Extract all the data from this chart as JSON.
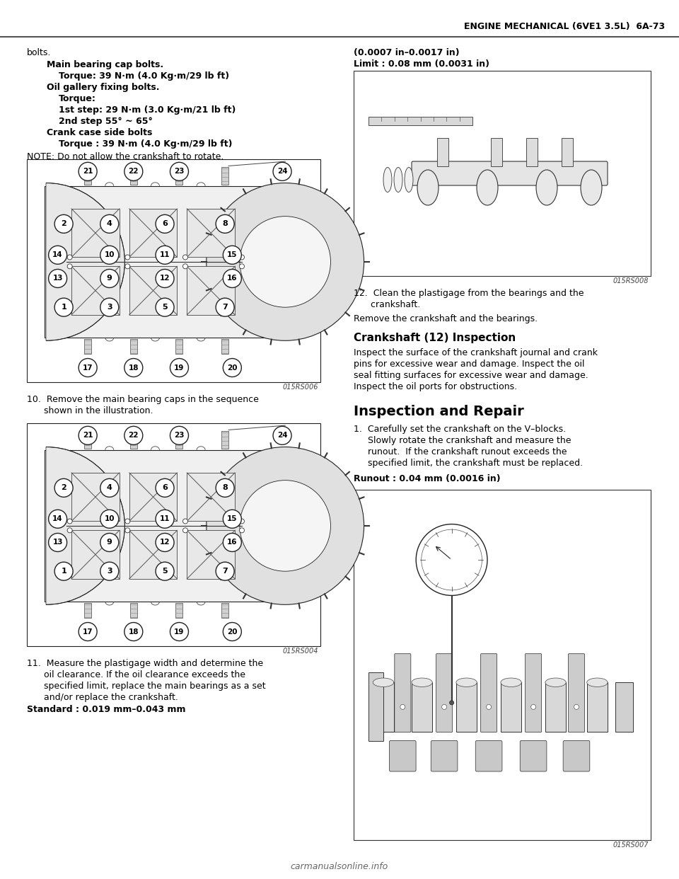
{
  "page_title": "ENGINE MECHANICAL (6VE1 3.5L)  6A-73",
  "bg_color": "#ffffff",
  "text_color": "#000000",
  "header_line_color": "#555555",
  "watermark": "carmanualsonline.info",
  "fig1_label": "015RS006",
  "fig2_label": "015RS004",
  "fig3_label": "015RS008",
  "fig4_label": "015RS007"
}
